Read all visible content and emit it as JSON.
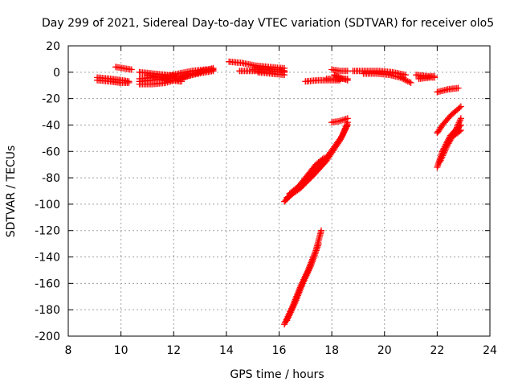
{
  "chart_data": {
    "type": "scatter",
    "title": "Day 299 of 2021, Sidereal Day-to-day VTEC variation (SDTVAR) for receiver olo5",
    "xlabel": "GPS time / hours",
    "ylabel": "SDTVAR / TECUs",
    "xlim": [
      8,
      24
    ],
    "ylim": [
      -200,
      20
    ],
    "xticks": [
      8,
      10,
      12,
      14,
      16,
      18,
      20,
      22,
      24
    ],
    "yticks": [
      20,
      0,
      -20,
      -40,
      -60,
      -80,
      -100,
      -120,
      -140,
      -160,
      -180,
      -200
    ],
    "grid": true,
    "marker": "+",
    "colors": {
      "series": "#ff0000"
    },
    "segments": [
      {
        "x": [
          9.1,
          9.6,
          10.0,
          10.3
        ],
        "y": [
          -4,
          -5,
          -6,
          -7
        ]
      },
      {
        "x": [
          9.1,
          9.6,
          10.0,
          10.3
        ],
        "y": [
          -6,
          -7,
          -8,
          -8
        ]
      },
      {
        "x": [
          9.8,
          10.1,
          10.4
        ],
        "y": [
          4,
          3,
          2
        ]
      },
      {
        "x": [
          10.7,
          11.2,
          11.7,
          12.2,
          12.7,
          13.2,
          13.5
        ],
        "y": [
          -9,
          -9,
          -8,
          -5,
          -2,
          0,
          1
        ]
      },
      {
        "x": [
          10.7,
          11.2,
          11.7,
          12.2,
          12.7,
          13.2,
          13.5
        ],
        "y": [
          -5,
          -4,
          -3,
          -1,
          1,
          2,
          2
        ]
      },
      {
        "x": [
          10.7,
          11.2,
          11.7,
          12.2,
          12.7,
          13.2,
          13.5
        ],
        "y": [
          -7,
          -6,
          -5,
          -3,
          -1,
          1,
          2
        ]
      },
      {
        "x": [
          10.7,
          11.2,
          11.7,
          12.1
        ],
        "y": [
          0,
          -1,
          -2,
          -3
        ]
      },
      {
        "x": [
          11.0,
          11.5,
          11.9,
          12.3
        ],
        "y": [
          -2,
          -4,
          -6,
          -7
        ]
      },
      {
        "x": [
          12.3,
          12.7,
          13.1,
          13.5
        ],
        "y": [
          -4,
          -2,
          1,
          3
        ]
      },
      {
        "x": [
          14.1,
          14.6,
          15.1,
          15.6,
          16.2
        ],
        "y": [
          8,
          7,
          5,
          4,
          3
        ]
      },
      {
        "x": [
          14.5,
          15.0,
          15.5,
          16.2
        ],
        "y": [
          1,
          1,
          1,
          0
        ]
      },
      {
        "x": [
          15.2,
          15.7,
          16.2
        ],
        "y": [
          0,
          -1,
          -2
        ]
      },
      {
        "x": [
          15.0,
          15.5,
          16.0,
          16.2
        ],
        "y": [
          2,
          2,
          2,
          1
        ]
      },
      {
        "x": [
          17.0,
          17.5,
          18.0,
          18.3
        ],
        "y": [
          -7,
          -6,
          -6,
          -6
        ]
      },
      {
        "x": [
          17.8,
          18.2,
          18.6
        ],
        "y": [
          -5,
          -5,
          -5
        ]
      },
      {
        "x": [
          18.0,
          18.3,
          18.6
        ],
        "y": [
          2,
          1,
          1
        ]
      },
      {
        "x": [
          18.1,
          18.3,
          18.6
        ],
        "y": [
          -2,
          -4,
          -6
        ]
      },
      {
        "x": [
          18.8,
          19.3,
          19.8,
          20.3,
          20.8
        ],
        "y": [
          1,
          1,
          1,
          0,
          -2
        ]
      },
      {
        "x": [
          19.2,
          19.7,
          20.2,
          20.6,
          21.0
        ],
        "y": [
          -1,
          -1,
          -2,
          -4,
          -8
        ]
      },
      {
        "x": [
          21.2,
          21.6,
          21.9
        ],
        "y": [
          -2,
          -3,
          -3
        ]
      },
      {
        "x": [
          21.3,
          21.7,
          21.9
        ],
        "y": [
          -5,
          -4,
          -4
        ]
      },
      {
        "x": [
          22.0,
          22.4,
          22.8
        ],
        "y": [
          -15,
          -13,
          -12
        ]
      },
      {
        "x": [
          16.2,
          16.6,
          17.0,
          17.4,
          17.7
        ],
        "y": [
          -98,
          -90,
          -80,
          -70,
          -65
        ]
      },
      {
        "x": [
          16.3,
          16.8,
          17.3,
          17.8,
          18.3,
          18.6
        ],
        "y": [
          -95,
          -88,
          -78,
          -67,
          -52,
          -40
        ]
      },
      {
        "x": [
          16.4,
          16.9,
          17.4,
          17.9,
          18.4,
          18.6
        ],
        "y": [
          -92,
          -84,
          -74,
          -62,
          -48,
          -38
        ]
      },
      {
        "x": [
          18.0,
          18.3,
          18.6
        ],
        "y": [
          -38,
          -37,
          -35
        ]
      },
      {
        "x": [
          16.2,
          16.5,
          16.8,
          17.1,
          17.4,
          17.6
        ],
        "y": [
          -191,
          -178,
          -163,
          -150,
          -135,
          -120
        ]
      },
      {
        "x": [
          16.3,
          16.6,
          16.9,
          17.2,
          17.5
        ],
        "y": [
          -188,
          -175,
          -160,
          -147,
          -130
        ]
      },
      {
        "x": [
          22.0,
          22.2,
          22.5,
          22.9
        ],
        "y": [
          -46,
          -40,
          -33,
          -26
        ]
      },
      {
        "x": [
          22.0,
          22.2,
          22.5,
          22.9
        ],
        "y": [
          -72,
          -60,
          -50,
          -44
        ]
      },
      {
        "x": [
          22.1,
          22.4,
          22.7,
          22.9
        ],
        "y": [
          -68,
          -55,
          -44,
          -35
        ]
      },
      {
        "x": [
          22.2,
          22.5,
          22.9
        ],
        "y": [
          -60,
          -48,
          -40
        ]
      }
    ]
  }
}
